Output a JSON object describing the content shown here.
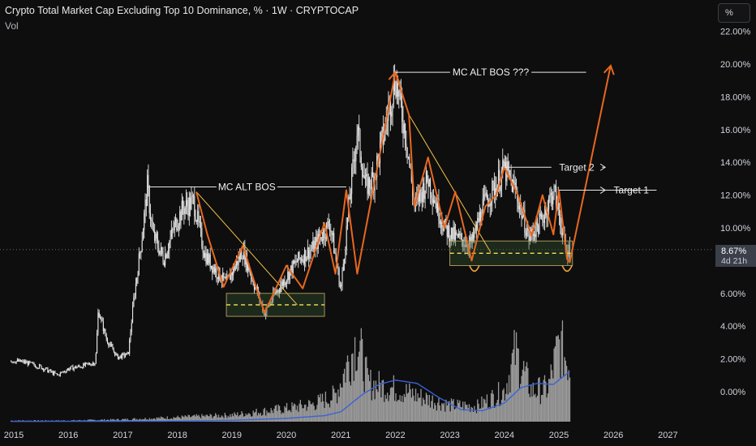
{
  "header": {
    "title": "Crypto Total Market Cap Excluding Top 10 Dominance, % · 1W · CRYPTOCAP",
    "volume_label": "Vol"
  },
  "controls": {
    "scale_button": "%"
  },
  "price_badge": {
    "value": "8.67%",
    "countdown": "4d 21h"
  },
  "colors": {
    "background": "#0e0e0e",
    "candles": "#e6e6e6",
    "drawing_orange": "#e8671f",
    "trendline_yellow": "#f3c14a",
    "volume_bars": "#9a9a9a",
    "volume_ma": "#3a62d6"
  },
  "chart_data": {
    "type": "line",
    "title": "Crypto Total Market Cap Excluding Top 10 Dominance, % · 1W · CRYPTOCAP",
    "x_tick_labels": [
      "2015",
      "2016",
      "2017",
      "2018",
      "2019",
      "2020",
      "2021",
      "2022",
      "2023",
      "2024",
      "2025",
      "2026",
      "2027"
    ],
    "y_tick_labels": [
      "0.00%",
      "2.00%",
      "4.00%",
      "6.00%",
      "8.00%",
      "10.00%",
      "12.00%",
      "14.00%",
      "16.00%",
      "18.00%",
      "20.00%",
      "22.00%"
    ],
    "ylim": [
      -1.8,
      22.5
    ],
    "xlim": [
      2014.95,
      2028.1
    ],
    "grid": false,
    "series": [
      {
        "values": [
          [
            2014.95,
            1.9
          ],
          [
            2015.2,
            1.8
          ],
          [
            2015.5,
            1.5
          ],
          [
            2015.8,
            1.0
          ],
          [
            2016.0,
            1.4
          ],
          [
            2016.3,
            1.6
          ],
          [
            2016.5,
            1.8
          ],
          [
            2016.55,
            5.0
          ],
          [
            2016.7,
            3.2
          ],
          [
            2016.9,
            2.1
          ],
          [
            2017.1,
            2.3
          ],
          [
            2017.2,
            5.6
          ],
          [
            2017.35,
            9.4
          ],
          [
            2017.45,
            12.5
          ],
          [
            2017.55,
            9.6
          ],
          [
            2017.75,
            8.1
          ],
          [
            2017.95,
            10.1
          ],
          [
            2018.1,
            11.2
          ],
          [
            2018.3,
            11.6
          ],
          [
            2018.5,
            8.4
          ],
          [
            2018.7,
            7.4
          ],
          [
            2018.9,
            6.6
          ],
          [
            2019.2,
            8.6
          ],
          [
            2019.45,
            6.2
          ],
          [
            2019.6,
            4.8
          ],
          [
            2019.8,
            6.0
          ],
          [
            2020.0,
            7.0
          ],
          [
            2020.2,
            8.0
          ],
          [
            2020.5,
            8.8
          ],
          [
            2020.8,
            10.3
          ],
          [
            2021.0,
            6.2
          ],
          [
            2021.15,
            11.5
          ],
          [
            2021.3,
            16.0
          ],
          [
            2021.45,
            12.5
          ],
          [
            2021.6,
            13.0
          ],
          [
            2021.8,
            16.0
          ],
          [
            2022.0,
            19.2
          ],
          [
            2022.2,
            15.5
          ],
          [
            2022.35,
            11.3
          ],
          [
            2022.6,
            13.0
          ],
          [
            2022.9,
            10.0
          ],
          [
            2023.1,
            9.4
          ],
          [
            2023.4,
            9.0
          ],
          [
            2023.6,
            11.3
          ],
          [
            2023.85,
            12.6
          ],
          [
            2024.0,
            13.6
          ],
          [
            2024.2,
            12.3
          ],
          [
            2024.45,
            9.4
          ],
          [
            2024.7,
            10.6
          ],
          [
            2024.9,
            12.3
          ],
          [
            2025.0,
            11.0
          ],
          [
            2025.12,
            8.6
          ],
          [
            2025.2,
            8.67
          ]
        ]
      }
    ],
    "volume_scale_max": 10,
    "volume": [
      [
        2014.95,
        0.1
      ],
      [
        2016.0,
        0.1
      ],
      [
        2017.0,
        0.2
      ],
      [
        2018.0,
        0.4
      ],
      [
        2019.0,
        0.6
      ],
      [
        2020.0,
        1.2
      ],
      [
        2020.5,
        1.6
      ],
      [
        2020.9,
        2.4
      ],
      [
        2021.1,
        5.0
      ],
      [
        2021.3,
        7.5
      ],
      [
        2021.5,
        3.5
      ],
      [
        2021.8,
        3.2
      ],
      [
        2022.0,
        3.0
      ],
      [
        2022.5,
        2.2
      ],
      [
        2023.0,
        1.5
      ],
      [
        2023.5,
        1.4
      ],
      [
        2024.0,
        2.8
      ],
      [
        2024.2,
        6.3
      ],
      [
        2024.5,
        2.8
      ],
      [
        2024.8,
        3.0
      ],
      [
        2025.0,
        7.0
      ],
      [
        2025.2,
        5.2
      ]
    ],
    "volume_ma": [
      [
        2014.95,
        0.02
      ],
      [
        2018.0,
        0.05
      ],
      [
        2019.0,
        0.12
      ],
      [
        2020.0,
        0.3
      ],
      [
        2020.7,
        0.55
      ],
      [
        2021.0,
        0.9
      ],
      [
        2021.4,
        2.5
      ],
      [
        2021.7,
        3.4
      ],
      [
        2022.0,
        3.8
      ],
      [
        2022.4,
        3.5
      ],
      [
        2022.8,
        2.2
      ],
      [
        2023.2,
        1.1
      ],
      [
        2023.6,
        1.0
      ],
      [
        2024.0,
        1.7
      ],
      [
        2024.3,
        3.1
      ],
      [
        2024.6,
        3.5
      ],
      [
        2024.9,
        3.4
      ],
      [
        2025.2,
        4.6
      ]
    ],
    "annotations": [
      {
        "text": "MC ALT BOS",
        "x0": 2017.45,
        "x1": 2021.1,
        "y": 12.5
      },
      {
        "text": "MC ALT BOS ???",
        "x0": 2022.0,
        "x1": 2025.5,
        "y": 19.5
      },
      {
        "text": "Target 2",
        "x0": 2024.0,
        "x1": 2025.85,
        "y": 13.7
      },
      {
        "text": "Target 1",
        "x0": 2025.0,
        "x1": 2025.85,
        "y": 12.3
      }
    ],
    "demand_zones": [
      {
        "x0": 2018.9,
        "x1": 2020.7,
        "y0": 4.6,
        "y1": 6.0
      },
      {
        "x0": 2023.0,
        "x1": 2025.25,
        "y0": 7.7,
        "y1": 9.2
      }
    ],
    "zigzag_swings": [
      [
        [
          2018.35,
          12.2
        ],
        [
          2018.55,
          9.6
        ],
        [
          2018.85,
          6.4
        ],
        [
          2019.2,
          8.9
        ],
        [
          2019.6,
          4.8
        ],
        [
          2020.0,
          7.7
        ],
        [
          2020.3,
          6.3
        ],
        [
          2020.7,
          10.3
        ],
        [
          2020.9,
          7.2
        ],
        [
          2021.1,
          12.3
        ],
        [
          2021.3,
          7.2
        ],
        [
          2022.0,
          19.5
        ],
        [
          2022.25,
          16.9
        ],
        [
          2022.35,
          11.3
        ],
        [
          2022.6,
          14.3
        ],
        [
          2022.9,
          10.0
        ],
        [
          2023.1,
          12.2
        ],
        [
          2023.4,
          8.0
        ],
        [
          2023.65,
          11.3
        ],
        [
          2023.85,
          12.0
        ],
        [
          2024.0,
          13.7
        ],
        [
          2024.25,
          12.0
        ],
        [
          2024.5,
          9.5
        ],
        [
          2024.7,
          12.0
        ],
        [
          2024.9,
          9.6
        ],
        [
          2025.0,
          12.3
        ],
        [
          2025.15,
          8.1
        ],
        [
          2025.2,
          7.9
        ],
        [
          2025.95,
          19.9
        ]
      ]
    ],
    "trendlines": [
      {
        "from": [
          2018.35,
          12.2
        ],
        "to": [
          2020.2,
          5.3
        ]
      },
      {
        "from": [
          2022.25,
          16.9
        ],
        "to": [
          2023.75,
          8.5
        ]
      }
    ],
    "current_value": "8.67%",
    "bar_countdown": "4d 21h"
  }
}
